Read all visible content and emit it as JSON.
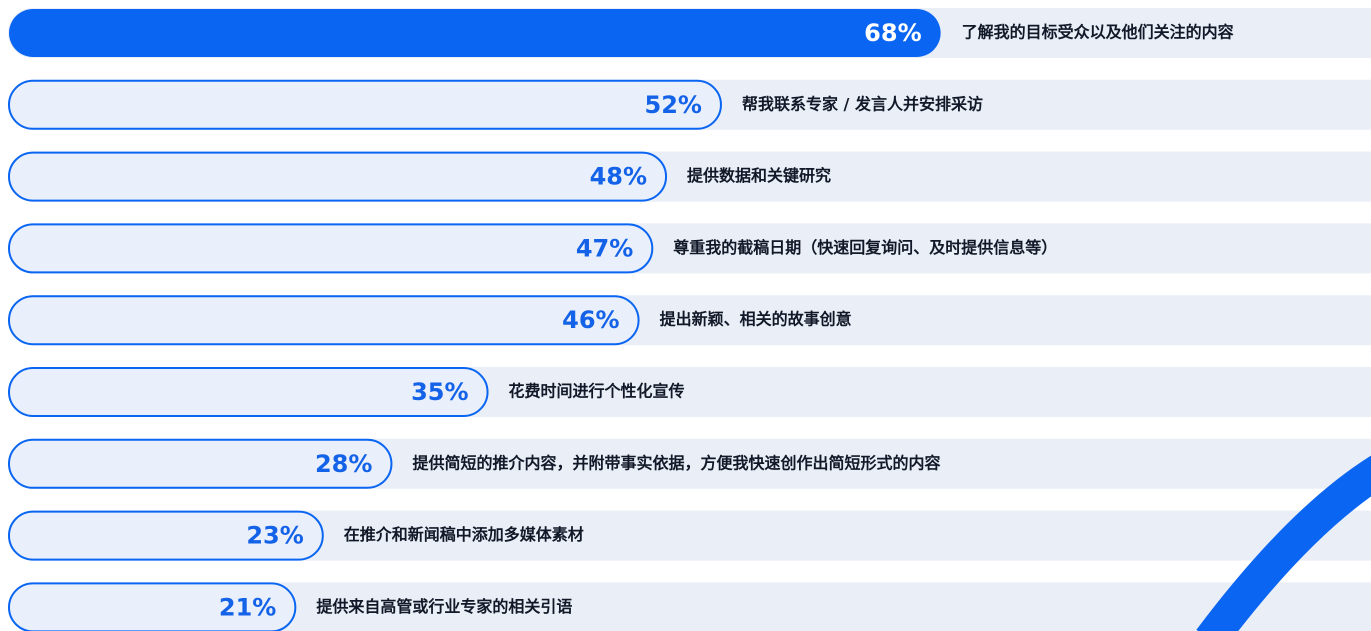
{
  "chart_data": {
    "type": "bar",
    "categories": [
      "了解我的目标受众以及他们关注的内容",
      "帮我联系专家 / 发言人并安排采访",
      "提供数据和关键研究",
      "尊重我的截稿日期（快速回复询问、及时提供信息等）",
      "提出新颖、相关的故事创意",
      "花费时间进行个性化宣传",
      "提供简短的推介内容，并附带事实依据，方便我快速创作出简短形式的内容",
      "在推介和新闻稿中添加多媒体素材",
      "提供来自高管或行业专家的相关引语"
    ],
    "values": [
      68,
      52,
      48,
      47,
      46,
      35,
      28,
      23,
      21
    ],
    "value_labels": [
      "68%",
      "52%",
      "48%",
      "47%",
      "46%",
      "35%",
      "28%",
      "23%",
      "21%"
    ],
    "colors": [
      "#0a66f2",
      "#e9effb",
      "#e9effb",
      "#e9effb",
      "#e9effb",
      "#e9effb",
      "#e9effb",
      "#e9effb",
      "#e9effb"
    ],
    "xlim": [
      0,
      100
    ]
  }
}
